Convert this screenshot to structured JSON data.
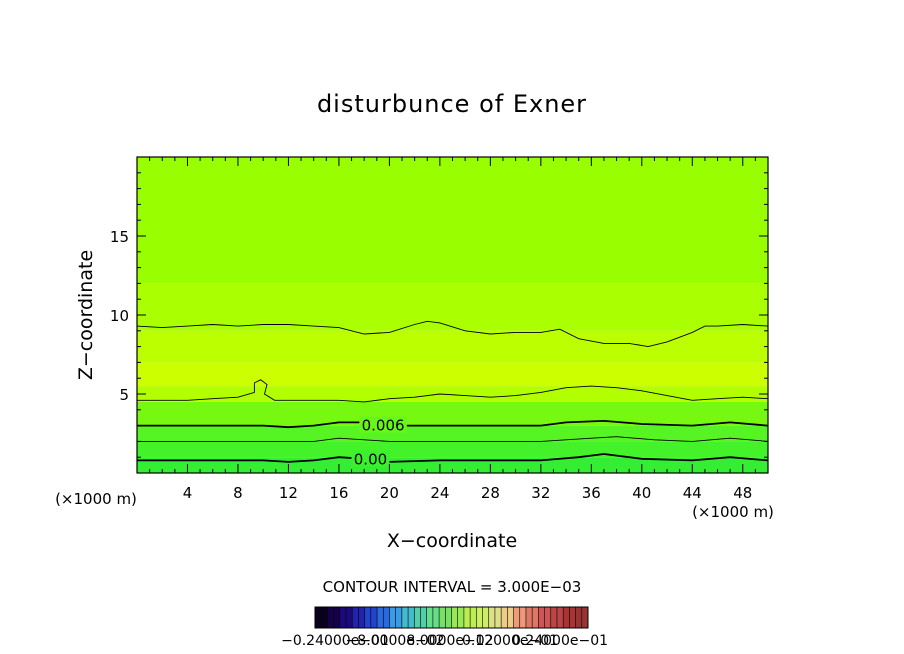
{
  "chart_data": {
    "type": "heatmap",
    "title": "disturbunce of Exner",
    "xlabel": "X−coordinate",
    "ylabel": "Z−coordinate",
    "x_unit_left": "(×1000 m)",
    "x_unit_right": "(×1000 m)",
    "xlim": [
      0,
      50
    ],
    "ylim": [
      0,
      20
    ],
    "x_ticks": [
      4,
      8,
      12,
      16,
      20,
      24,
      28,
      32,
      36,
      40,
      44,
      48
    ],
    "y_ticks": [
      5,
      10,
      15
    ],
    "contour_interval_text": "CONTOUR INTERVAL = 3.000E−03",
    "colorbar_labels": [
      "−0.24000e−01",
      "−8.0000e−02",
      "8.0000e−02",
      "0.12000e−01",
      "0.24000e−01"
    ],
    "contour_labels": [
      {
        "text": "0.006",
        "x": 19.5,
        "z": 3.0
      },
      {
        "text": "0.00",
        "x": 18.5,
        "z": 0.85
      }
    ],
    "contours": [
      {
        "bold": false,
        "points": [
          [
            0,
            9.3
          ],
          [
            2,
            9.2
          ],
          [
            4,
            9.3
          ],
          [
            6,
            9.4
          ],
          [
            8,
            9.3
          ],
          [
            10,
            9.4
          ],
          [
            12,
            9.4
          ],
          [
            14,
            9.3
          ],
          [
            16,
            9.2
          ],
          [
            18,
            8.8
          ],
          [
            20,
            8.9
          ],
          [
            22,
            9.4
          ],
          [
            23,
            9.6
          ],
          [
            24,
            9.5
          ],
          [
            26,
            9.0
          ],
          [
            28,
            8.8
          ],
          [
            30,
            8.9
          ],
          [
            32,
            8.9
          ],
          [
            33.5,
            9.1
          ],
          [
            35,
            8.5
          ],
          [
            37,
            8.2
          ],
          [
            39,
            8.2
          ],
          [
            40.5,
            8.0
          ],
          [
            42,
            8.3
          ],
          [
            44,
            8.9
          ],
          [
            45,
            9.3
          ],
          [
            46,
            9.3
          ],
          [
            48,
            9.4
          ],
          [
            50,
            9.3
          ]
        ]
      },
      {
        "bold": false,
        "points": [
          [
            0,
            4.6
          ],
          [
            2,
            4.6
          ],
          [
            4,
            4.6
          ],
          [
            6,
            4.7
          ],
          [
            8,
            4.8
          ],
          [
            9.3,
            5.1
          ],
          [
            9.3,
            5.7
          ],
          [
            9.8,
            5.9
          ],
          [
            10.3,
            5.6
          ],
          [
            10.1,
            5.0
          ],
          [
            10.9,
            4.6
          ],
          [
            12,
            4.6
          ],
          [
            14,
            4.6
          ],
          [
            16,
            4.6
          ],
          [
            18,
            4.5
          ],
          [
            20,
            4.7
          ],
          [
            22,
            4.8
          ],
          [
            24,
            5.0
          ],
          [
            26,
            4.9
          ],
          [
            28,
            4.8
          ],
          [
            30,
            4.9
          ],
          [
            32,
            5.1
          ],
          [
            34,
            5.4
          ],
          [
            36,
            5.5
          ],
          [
            38,
            5.4
          ],
          [
            40,
            5.2
          ],
          [
            42,
            4.9
          ],
          [
            44,
            4.6
          ],
          [
            46,
            4.7
          ],
          [
            48,
            4.8
          ],
          [
            50,
            4.7
          ]
        ]
      },
      {
        "bold": true,
        "points": [
          [
            0,
            3.0
          ],
          [
            5,
            3.0
          ],
          [
            10,
            3.0
          ],
          [
            12,
            2.9
          ],
          [
            14,
            3.0
          ],
          [
            16,
            3.2
          ],
          [
            18,
            3.2
          ],
          [
            20,
            3.0
          ],
          [
            24,
            3.0
          ],
          [
            28,
            3.0
          ],
          [
            32,
            3.0
          ],
          [
            34,
            3.2
          ],
          [
            37,
            3.3
          ],
          [
            40,
            3.1
          ],
          [
            44,
            3.0
          ],
          [
            47,
            3.2
          ],
          [
            50,
            3.0
          ]
        ]
      },
      {
        "bold": false,
        "points": [
          [
            0,
            2.0
          ],
          [
            6,
            2.0
          ],
          [
            10,
            2.0
          ],
          [
            14,
            2.0
          ],
          [
            16,
            2.2
          ],
          [
            18,
            2.1
          ],
          [
            20,
            2.0
          ],
          [
            24,
            2.0
          ],
          [
            28,
            2.0
          ],
          [
            32,
            2.0
          ],
          [
            36,
            2.2
          ],
          [
            38,
            2.3
          ],
          [
            41,
            2.1
          ],
          [
            44,
            2.0
          ],
          [
            47,
            2.2
          ],
          [
            50,
            2.0
          ]
        ]
      },
      {
        "bold": true,
        "points": [
          [
            0,
            0.8
          ],
          [
            6,
            0.8
          ],
          [
            10,
            0.8
          ],
          [
            12,
            0.7
          ],
          [
            14,
            0.8
          ],
          [
            16,
            1.0
          ],
          [
            18,
            0.9
          ],
          [
            20,
            0.7
          ],
          [
            24,
            0.8
          ],
          [
            28,
            0.8
          ],
          [
            32,
            0.8
          ],
          [
            35,
            1.0
          ],
          [
            37,
            1.2
          ],
          [
            40,
            0.9
          ],
          [
            44,
            0.8
          ],
          [
            47,
            1.0
          ],
          [
            50,
            0.8
          ]
        ]
      }
    ],
    "bands": [
      {
        "z": [
          0,
          1
        ],
        "color": "#33ee33"
      },
      {
        "z": [
          1,
          2
        ],
        "color": "#44f22a"
      },
      {
        "z": [
          2,
          3
        ],
        "color": "#55f422"
      },
      {
        "z": [
          3,
          4.5
        ],
        "color": "#77f810"
      },
      {
        "z": [
          4.5,
          5.5
        ],
        "color": "#b2ff00"
      },
      {
        "z": [
          5.5,
          7
        ],
        "color": "#ccff00"
      },
      {
        "z": [
          7,
          9
        ],
        "color": "#bbff00"
      },
      {
        "z": [
          9,
          12
        ],
        "color": "#aaff00"
      },
      {
        "z": [
          12,
          20
        ],
        "color": "#99ff00"
      }
    ],
    "colorbar_colors": [
      "#0a0020",
      "#16004a",
      "#1b0a7c",
      "#2222aa",
      "#2244cc",
      "#2a6ae0",
      "#3a9ae6",
      "#44bbcc",
      "#55ccaa",
      "#66dd88",
      "#77e066",
      "#99e855",
      "#bbee55",
      "#ccee66",
      "#dde088",
      "#eecc88",
      "#ee9977",
      "#dd7766",
      "#cc5555",
      "#bb4444",
      "#aa3333",
      "#993333"
    ]
  }
}
